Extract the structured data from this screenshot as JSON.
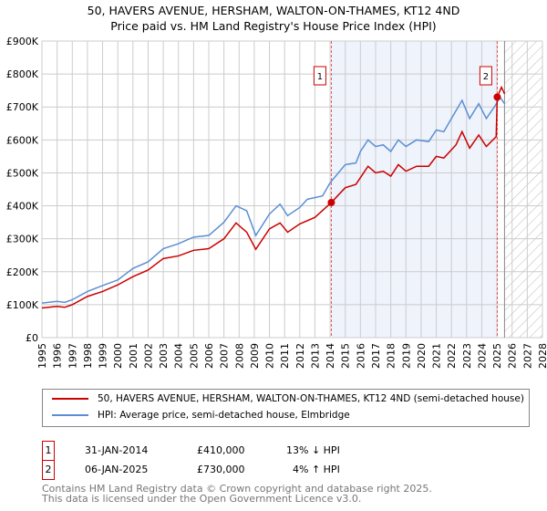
{
  "title": "50, HAVERS AVENUE, HERSHAM, WALTON-ON-THAMES, KT12 4ND",
  "subtitle": "Price paid vs. HM Land Registry's House Price Index (HPI)",
  "chart_data": {
    "type": "line",
    "ylim": [
      0,
      900000
    ],
    "xlim": [
      1995,
      2028
    ],
    "yticks": [
      0,
      100000,
      200000,
      300000,
      400000,
      500000,
      600000,
      700000,
      800000,
      900000
    ],
    "ytick_labels": [
      "£0",
      "£100K",
      "£200K",
      "£300K",
      "£400K",
      "£500K",
      "£600K",
      "£700K",
      "£800K",
      "£900K"
    ],
    "xticks": [
      "1995",
      "1996",
      "1997",
      "1998",
      "1999",
      "2000",
      "2001",
      "2002",
      "2003",
      "2004",
      "2005",
      "2006",
      "2007",
      "2008",
      "2009",
      "2010",
      "2011",
      "2012",
      "2013",
      "2014",
      "2015",
      "2016",
      "2017",
      "2018",
      "2019",
      "2020",
      "2021",
      "2022",
      "2023",
      "2024",
      "2025",
      "2026",
      "2027",
      "2028"
    ],
    "grid": true,
    "shaded_range": [
      2014.08,
      2025.02
    ],
    "forecast_hatch_from": 2025.5,
    "series": [
      {
        "name": "50, HAVERS AVENUE, HERSHAM, WALTON-ON-THAMES, KT12 4ND (semi-detached house)",
        "color": "#cc0000",
        "x": [
          1995,
          1996,
          1996.5,
          1997,
          1998,
          1999,
          2000,
          2001,
          2002,
          2003,
          2004,
          2005,
          2006,
          2007,
          2007.8,
          2008.5,
          2009.1,
          2010,
          2010.7,
          2011.2,
          2012,
          2013,
          2014.08,
          2015,
          2015.7,
          2016.5,
          2017,
          2017.5,
          2018,
          2018.5,
          2019,
          2019.7,
          2020.5,
          2021,
          2021.5,
          2022.3,
          2022.7,
          2023.2,
          2023.8,
          2024.3,
          2024.95,
          2025.02,
          2025.3,
          2025.5
        ],
        "y": [
          90000,
          95000,
          92000,
          100000,
          125000,
          140000,
          160000,
          185000,
          205000,
          240000,
          248000,
          265000,
          270000,
          300000,
          348000,
          320000,
          268000,
          330000,
          348000,
          320000,
          345000,
          365000,
          410000,
          455000,
          465000,
          520000,
          500000,
          505000,
          490000,
          525000,
          505000,
          520000,
          520000,
          550000,
          545000,
          585000,
          625000,
          575000,
          615000,
          580000,
          610000,
          730000,
          760000,
          740000
        ]
      },
      {
        "name": "HPI: Average price, semi-detached house, Elmbridge",
        "color": "#5b8fd4",
        "x": [
          1995,
          1996,
          1996.5,
          1997,
          1998,
          1999,
          2000,
          2001,
          2002,
          2003,
          2004,
          2005,
          2006,
          2007,
          2007.8,
          2008.5,
          2009.1,
          2010,
          2010.7,
          2011.2,
          2012,
          2012.5,
          2013.5,
          2014,
          2015,
          2015.7,
          2016,
          2016.5,
          2017,
          2017.5,
          2018,
          2018.5,
          2019,
          2019.7,
          2020.5,
          2021,
          2021.5,
          2022,
          2022.7,
          2023.2,
          2023.8,
          2024.3,
          2024.9,
          2025.2,
          2025.5
        ],
        "y": [
          105000,
          110000,
          107000,
          115000,
          140000,
          158000,
          175000,
          210000,
          230000,
          270000,
          285000,
          305000,
          310000,
          350000,
          400000,
          385000,
          310000,
          375000,
          405000,
          370000,
          395000,
          420000,
          430000,
          470000,
          525000,
          530000,
          565000,
          600000,
          580000,
          585000,
          565000,
          600000,
          580000,
          600000,
          595000,
          630000,
          625000,
          665000,
          720000,
          665000,
          710000,
          665000,
          705000,
          730000,
          710000
        ]
      }
    ],
    "annotations": [
      {
        "label": "1",
        "x": 2014.08,
        "y": 410000
      },
      {
        "label": "2",
        "x": 2025.02,
        "y": 730000
      }
    ]
  },
  "legend": [
    {
      "label": "50, HAVERS AVENUE, HERSHAM, WALTON-ON-THAMES, KT12 4ND (semi-detached house)",
      "color": "#cc0000"
    },
    {
      "label": "HPI: Average price, semi-detached house, Elmbridge",
      "color": "#5b8fd4"
    }
  ],
  "transactions": [
    {
      "num": "1",
      "date": "31-JAN-2014",
      "price": "£410,000",
      "hpi": "13% ↓ HPI"
    },
    {
      "num": "2",
      "date": "06-JAN-2025",
      "price": "£730,000",
      "hpi": "4% ↑ HPI"
    }
  ],
  "footer": [
    "Contains HM Land Registry data © Crown copyright and database right 2025.",
    "This data is licensed under the Open Government Licence v3.0."
  ]
}
